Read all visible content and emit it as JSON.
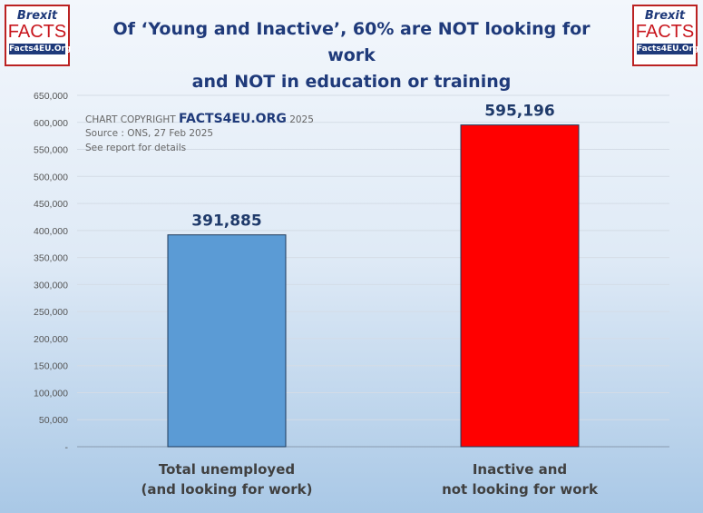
{
  "logo": {
    "line1": "Brexit",
    "line2": "FACTS",
    "line3": "Facts4EU.Org"
  },
  "title_line1": "Of ‘Young and Inactive’, 60% are NOT looking for work",
  "title_line2": "and NOT in education or training",
  "copyright": {
    "prefix": "CHART COPYRIGHT ",
    "brand": "FACTS4EU.ORG",
    "year": " 2025",
    "source": "Source : ONS, 27 Feb 2025",
    "note": "See report for details"
  },
  "chart_data": {
    "type": "bar",
    "categories": [
      "Total unemployed\n(and looking for work)",
      "Inactive and\nnot looking for work"
    ],
    "category_lines": [
      [
        "Total unemployed",
        "(and looking for work)"
      ],
      [
        "Inactive and",
        "not looking for work"
      ]
    ],
    "values": [
      391885,
      595196
    ],
    "data_labels": [
      "391,885",
      "595,196"
    ],
    "colors": [
      "#5b9bd5",
      "#ff0000"
    ],
    "ylim": [
      0,
      650000
    ],
    "yticks": [
      0,
      50000,
      100000,
      150000,
      200000,
      250000,
      300000,
      350000,
      400000,
      450000,
      500000,
      550000,
      600000,
      650000
    ],
    "ytick_labels": [
      "-",
      "50,000",
      "100,000",
      "150,000",
      "200,000",
      "250,000",
      "300,000",
      "350,000",
      "400,000",
      "450,000",
      "500,000",
      "550,000",
      "600,000",
      "650,000"
    ],
    "grid": true
  }
}
